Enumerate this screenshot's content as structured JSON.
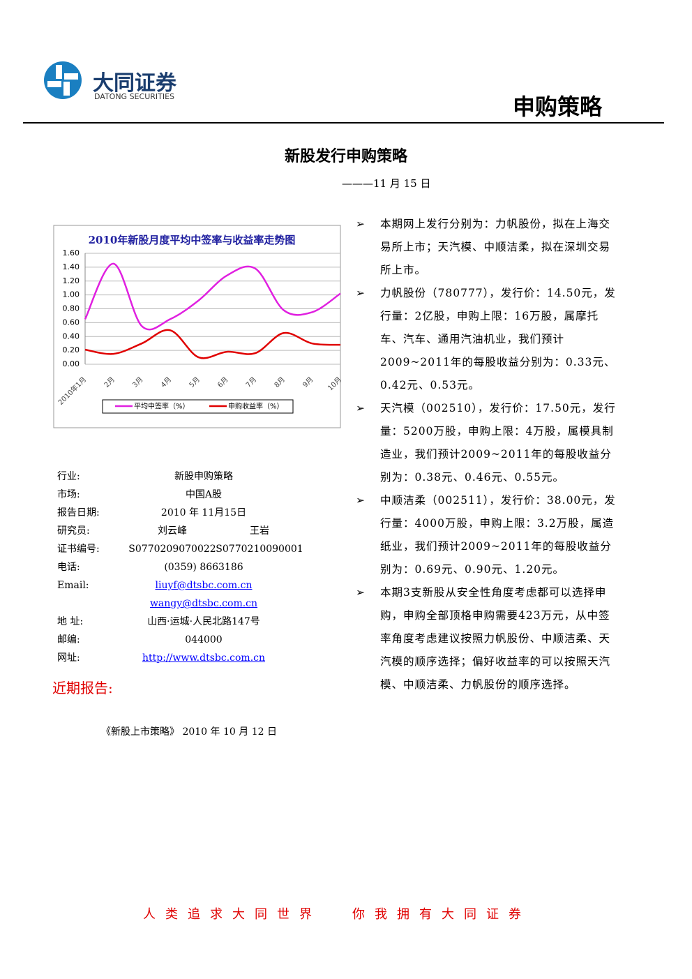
{
  "header": {
    "brand": "大同证券",
    "brand_en": "DATONG SECURITIES",
    "category": "申购策略"
  },
  "title": "新股发行申购策略",
  "date": "———11 月 15 日",
  "chart_data": {
    "type": "line",
    "title": "2010年新股月度平均中签率与收益率走势图",
    "categories": [
      "2010年1月",
      "2月",
      "3月",
      "4月",
      "5月",
      "6月",
      "7月",
      "8月",
      "9月",
      "10月"
    ],
    "series": [
      {
        "name": "平均中签率（%）",
        "color": "#e020e0",
        "values": [
          0.65,
          1.45,
          0.55,
          0.65,
          0.92,
          1.28,
          1.38,
          0.78,
          0.75,
          1.02
        ]
      },
      {
        "name": "申购收益率（%）",
        "color": "#e00000",
        "values": [
          0.21,
          0.15,
          0.3,
          0.49,
          0.1,
          0.18,
          0.16,
          0.45,
          0.3,
          0.28
        ]
      }
    ],
    "ylim": [
      0,
      1.6
    ],
    "yticks": [
      {
        "value": 0,
        "label": "0.00"
      },
      {
        "value": 0.2,
        "label": "0.20"
      },
      {
        "value": 0.4,
        "label": "0.40"
      },
      {
        "value": 0.6,
        "label": "0.60"
      },
      {
        "value": 0.8,
        "label": "0.80"
      },
      {
        "value": 1,
        "label": "1.00"
      },
      {
        "value": 1.2,
        "label": "1.20"
      },
      {
        "value": 1.4,
        "label": "1.40"
      },
      {
        "value": 1.6,
        "label": "1.60"
      }
    ],
    "grid": true,
    "legend": "bottom"
  },
  "info": {
    "rows": [
      {
        "label": "行业:",
        "values": [
          "新股申购策略"
        ]
      },
      {
        "label": "市场:",
        "values": [
          "中国A股"
        ]
      },
      {
        "label": "报告日期:",
        "values": [
          "2010 年 11月15日"
        ]
      },
      {
        "label": "研究员:",
        "values": [
          "刘云峰",
          "王岩"
        ]
      },
      {
        "label": "证书编号:",
        "values": [
          "S0770209070022",
          "S0770210090001"
        ]
      },
      {
        "label": "电话:",
        "values": [
          "(0359) 8663186"
        ]
      },
      {
        "label": "Email:",
        "values": [
          "liuyf@dtsbc.com.cn"
        ]
      },
      {
        "values": [
          "wangy@dtsbc.com.cn"
        ]
      },
      {
        "label": "地 址:",
        "values": [
          "山西·运城·人民北路147号"
        ]
      },
      {
        "label": "邮编:",
        "values": [
          "044000"
        ]
      },
      {
        "label": "网址:",
        "values": [
          "http://www.dtsbc.com.cn"
        ]
      }
    ]
  },
  "recent": {
    "heading": "近期报告:",
    "items": [
      "《新股上市策略》 2010 年 10 月 12 日"
    ]
  },
  "bullets": [
    "本期网上发行分别为：力帆股份，拟在上海交易所上市；天汽模、中顺洁柔，拟在深圳交易所上市。",
    "力帆股份（780777），发行价：14.50元，发行量：2亿股，申购上限：16万股，属摩托车、汽车、通用汽油机业，我们预计2009~2011年的每股收益分别为：0.33元、0.42元、0.53元。",
    "天汽模（002510），发行价：17.50元，发行量：5200万股，申购上限：4万股，属模具制造业，我们预计2009~2011年的每股收益分别为：0.38元、0.46元、0.55元。",
    "中顺洁柔（002511），发行价：38.00元，发行量：4000万股，申购上限：3.2万股，属造纸业，我们预计2009~2011年的每股收益分别为：0.69元、0.90元、1.20元。",
    "本期3支新股从安全性角度考虑都可以选择申购，申购全部顶格申购需要423万元，从中签率角度考虑建议按照力帆股份、中顺洁柔、天汽模的顺序选择；偏好收益率的可以按照天汽模、中顺洁柔、力帆股份的顺序选择。"
  ],
  "footer": [
    "人类追求大同世界",
    "你我拥有大同证券"
  ]
}
